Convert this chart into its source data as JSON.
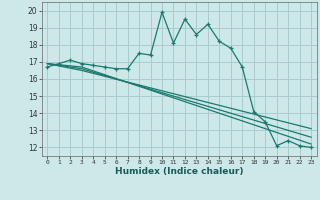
{
  "xlabel": "Humidex (Indice chaleur)",
  "bg_color": "#cce8e8",
  "grid_color": "#aacccc",
  "line_color": "#1a7a6e",
  "xlim": [
    -0.5,
    23.5
  ],
  "ylim": [
    11.5,
    20.5
  ],
  "yticks": [
    12,
    13,
    14,
    15,
    16,
    17,
    18,
    19,
    20
  ],
  "xticks": [
    0,
    1,
    2,
    3,
    4,
    5,
    6,
    7,
    8,
    9,
    10,
    11,
    12,
    13,
    14,
    15,
    16,
    17,
    18,
    19,
    20,
    21,
    22,
    23
  ],
  "series1_x": [
    0,
    1,
    2,
    3,
    4,
    5,
    6,
    7,
    8,
    9,
    10,
    11,
    12,
    13,
    14,
    15,
    16,
    17,
    18,
    19,
    20,
    21,
    22,
    23
  ],
  "series1_y": [
    16.7,
    16.9,
    17.1,
    16.9,
    16.8,
    16.7,
    16.6,
    16.6,
    17.5,
    17.4,
    19.9,
    18.1,
    19.5,
    18.6,
    19.2,
    18.2,
    17.8,
    16.7,
    14.1,
    13.5,
    12.1,
    12.4,
    12.1,
    12.0
  ],
  "series2_x": [
    0,
    3,
    23
  ],
  "series2_y": [
    16.9,
    16.7,
    12.2
  ],
  "series3_x": [
    0,
    3,
    23
  ],
  "series3_y": [
    16.9,
    16.6,
    12.6
  ],
  "series4_x": [
    0,
    3,
    23
  ],
  "series4_y": [
    16.9,
    16.5,
    13.1
  ]
}
